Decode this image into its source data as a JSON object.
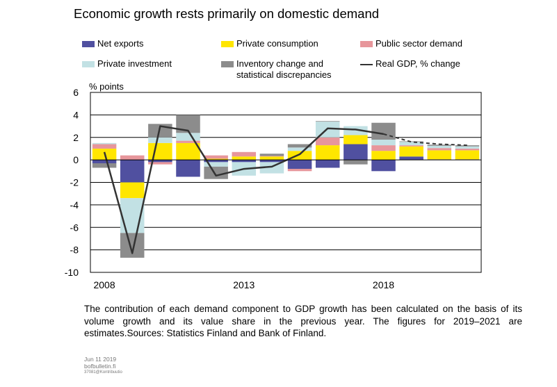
{
  "chart_data": {
    "type": "bar",
    "title": "Economic growth rests primarily on domestic demand",
    "ylabel": "% points",
    "ylim": [
      -10,
      6
    ],
    "yticks": [
      6,
      4,
      2,
      0,
      -2,
      -4,
      -6,
      -8,
      -10
    ],
    "x_start": 2008,
    "x_end": 2021,
    "xticks": [
      "2008",
      "2013",
      "2018"
    ],
    "estimates_from": 2019,
    "legend": {
      "net_exports": "Net exports",
      "private_consumption": "Private consumption",
      "public_sector_demand": "Public sector demand",
      "private_investment": "Private investment",
      "inventory_line1": "Inventory change and",
      "inventory_line2": "statistical discrepancies",
      "real_gdp": "Real GDP, % change"
    },
    "series": [
      {
        "name": "Net exports",
        "color": "#5050a0",
        "values": [
          -0.3,
          -2.0,
          -0.2,
          -1.5,
          -0.2,
          -0.2,
          -0.2,
          -0.8,
          -0.7,
          1.4,
          -1.0,
          0.3,
          0.05,
          0.05
        ]
      },
      {
        "name": "Private consumption",
        "color": "#ffe600",
        "values": [
          1.0,
          -1.4,
          1.5,
          1.5,
          0.1,
          0.3,
          0.3,
          0.8,
          1.3,
          0.8,
          0.8,
          0.9,
          0.8,
          0.8
        ]
      },
      {
        "name": "Public sector demand",
        "color": "#e7969b",
        "values": [
          0.4,
          0.4,
          -0.2,
          0.2,
          0.3,
          0.4,
          0.05,
          -0.2,
          0.7,
          0.0,
          0.5,
          0.1,
          0.2,
          0.15
        ]
      },
      {
        "name": "Private investment",
        "color": "#c2e1e4",
        "values": [
          0.1,
          -3.1,
          0.5,
          0.7,
          -0.4,
          -1.2,
          -1.0,
          0.3,
          1.4,
          0.8,
          0.5,
          0.3,
          0.2,
          0.2
        ]
      },
      {
        "name": "Inventory change and statistical discrepancies",
        "color": "#8c8c8c",
        "values": [
          -0.4,
          -2.2,
          1.2,
          1.6,
          -1.1,
          0.0,
          0.2,
          0.3,
          0.05,
          -0.4,
          1.5,
          0.05,
          0.1,
          0.1
        ]
      }
    ],
    "line": {
      "name": "Real GDP, % change",
      "color": "#333333",
      "values": [
        0.7,
        -8.3,
        3.0,
        2.6,
        -1.4,
        -0.8,
        -0.6,
        0.5,
        2.8,
        2.7,
        2.3,
        1.6,
        1.4,
        1.3
      ]
    },
    "grid": true
  },
  "note": "The contribution of each demand component to GDP growth has been calculated on the basis of its volume growth and its value share in the previous year. The figures for 2019–2021 are estimates.Sources: Statistics Finland and Bank of Finland.",
  "footer": {
    "date": "Jun 11 2019",
    "site": "bofbulletin.fi",
    "code": "37081@Kontribuutio"
  }
}
